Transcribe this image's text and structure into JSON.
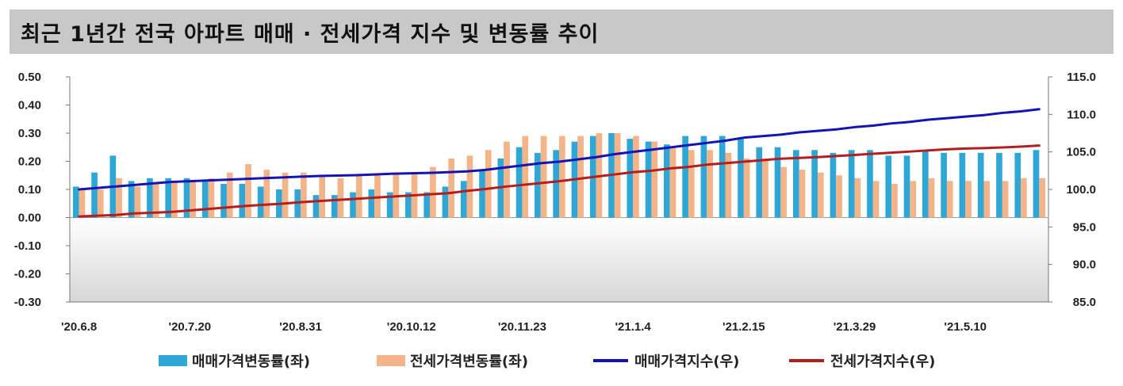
{
  "title": "최근 1년간 전국 아파트 매매 · 전세가격 지수 및 변동률 추이",
  "chart_data": {
    "type": "bar",
    "title": "최근 1년간 전국 아파트 매매 · 전세가격 지수 및 변동률 추이",
    "x_tick_labels": [
      "'20.6.8",
      "'20.7.20",
      "'20.8.31",
      "'20.10.12",
      "'20.11.23",
      "'21.1.4",
      "'21.2.15",
      "'21.3.29",
      "'21.5.10"
    ],
    "x_tick_indices": [
      0,
      6,
      12,
      18,
      24,
      30,
      36,
      42,
      48
    ],
    "y_left": {
      "ylim": [
        -0.3,
        0.5
      ],
      "ticks": [
        "0.50",
        "0.40",
        "0.30",
        "0.20",
        "0.10",
        "0.00",
        "-0.10",
        "-0.20",
        "-0.30"
      ]
    },
    "y_right": {
      "ylim": [
        85.0,
        115.0
      ],
      "ticks": [
        "115.0",
        "110.0",
        "105.0",
        "100.0",
        "95.0",
        "90.0",
        "85.0"
      ]
    },
    "legend_position": "bottom",
    "grid": false,
    "series": [
      {
        "name": "매매가격변동률(좌)",
        "type": "bar",
        "axis": "left",
        "color": "#2fa7d6",
        "values": [
          0.11,
          0.16,
          0.22,
          0.13,
          0.14,
          0.14,
          0.14,
          0.13,
          0.12,
          0.12,
          0.11,
          0.1,
          0.1,
          0.08,
          0.08,
          0.09,
          0.1,
          0.09,
          0.09,
          0.09,
          0.11,
          0.13,
          0.17,
          0.21,
          0.25,
          0.23,
          0.24,
          0.27,
          0.29,
          0.3,
          0.28,
          0.27,
          0.26,
          0.29,
          0.29,
          0.29,
          0.28,
          0.25,
          0.25,
          0.24,
          0.24,
          0.23,
          0.24,
          0.24,
          0.22,
          0.22,
          0.24,
          0.23,
          0.23,
          0.23,
          0.23,
          0.23,
          0.24
        ]
      },
      {
        "name": "전세가격변동률(좌)",
        "type": "bar",
        "axis": "left",
        "color": "#f4b48a",
        "values": [
          0.1,
          0.1,
          0.14,
          0.11,
          0.12,
          0.13,
          0.13,
          0.14,
          0.16,
          0.19,
          0.17,
          0.16,
          0.16,
          0.15,
          0.14,
          0.15,
          0.15,
          0.16,
          0.16,
          0.18,
          0.21,
          0.22,
          0.24,
          0.27,
          0.29,
          0.29,
          0.29,
          0.29,
          0.3,
          0.3,
          0.29,
          0.27,
          0.25,
          0.24,
          0.24,
          0.23,
          0.21,
          0.21,
          0.18,
          0.17,
          0.16,
          0.15,
          0.14,
          0.13,
          0.12,
          0.13,
          0.14,
          0.13,
          0.13,
          0.13,
          0.13,
          0.14,
          0.14
        ]
      },
      {
        "name": "매매가격지수(우)",
        "type": "line",
        "axis": "right",
        "color": "#1414b4",
        "values": [
          100.0,
          100.2,
          100.4,
          100.6,
          100.8,
          101.0,
          101.1,
          101.2,
          101.3,
          101.4,
          101.5,
          101.6,
          101.7,
          101.8,
          101.85,
          101.9,
          102.0,
          102.1,
          102.15,
          102.2,
          102.3,
          102.4,
          102.6,
          102.9,
          103.2,
          103.5,
          103.7,
          104.0,
          104.3,
          104.7,
          105.0,
          105.3,
          105.6,
          105.9,
          106.2,
          106.5,
          106.9,
          107.1,
          107.3,
          107.6,
          107.8,
          108.0,
          108.3,
          108.5,
          108.8,
          109.0,
          109.3,
          109.5,
          109.7,
          109.9,
          110.2,
          110.4,
          110.7
        ]
      },
      {
        "name": "전세가격지수(우)",
        "type": "line",
        "axis": "right",
        "color": "#b41e1e",
        "values": [
          96.4,
          96.5,
          96.6,
          96.8,
          96.9,
          97.0,
          97.2,
          97.4,
          97.6,
          97.8,
          97.95,
          98.1,
          98.3,
          98.45,
          98.6,
          98.75,
          98.9,
          99.05,
          99.2,
          99.35,
          99.5,
          99.8,
          100.05,
          100.35,
          100.6,
          100.85,
          101.1,
          101.4,
          101.7,
          102.0,
          102.3,
          102.5,
          102.8,
          103.0,
          103.3,
          103.5,
          103.7,
          103.9,
          104.1,
          104.2,
          104.3,
          104.45,
          104.6,
          104.75,
          104.9,
          105.05,
          105.2,
          105.35,
          105.45,
          105.5,
          105.6,
          105.7,
          105.85
        ]
      }
    ]
  }
}
